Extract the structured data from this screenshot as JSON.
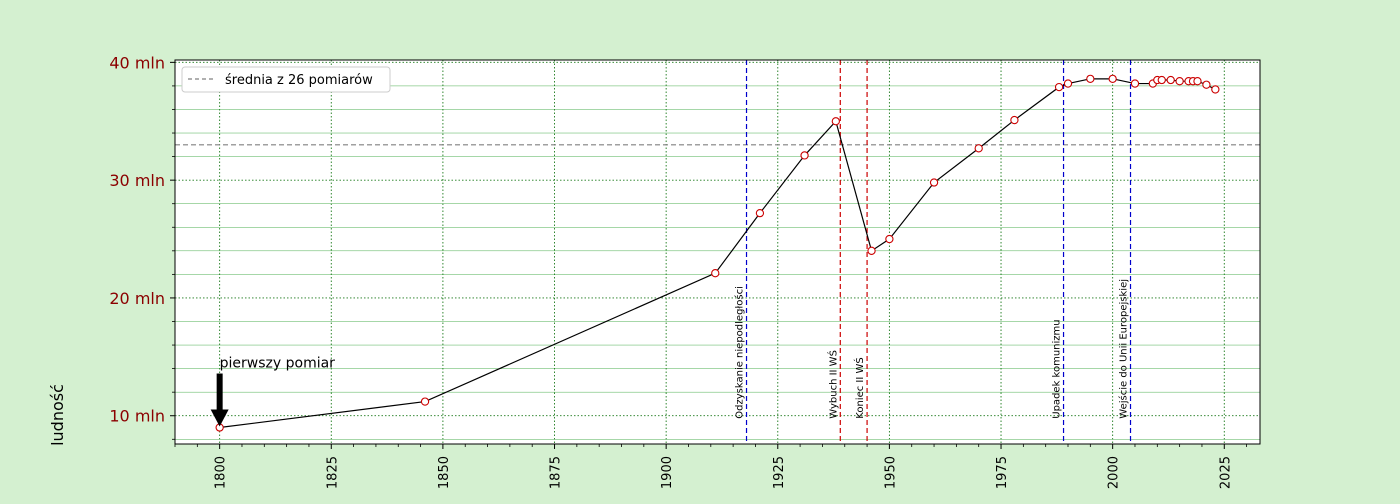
{
  "chart_data": {
    "type": "line",
    "xlabel": "",
    "ylabel": "ludność",
    "xlim": [
      1790,
      2033
    ],
    "ylim": [
      7.6,
      40.2
    ],
    "y_unit_suffix": " mln",
    "x_ticks": [
      1800,
      1825,
      1850,
      1875,
      1900,
      1925,
      1950,
      1975,
      2000,
      2025
    ],
    "y_ticks": [
      10,
      20,
      30,
      40
    ],
    "grid": true,
    "legend_position": "top-left",
    "series": [
      {
        "name": "",
        "color": "#000000",
        "marker_edge": "#cc0000",
        "marker_face": "#ffffff",
        "x": [
          1800,
          1846,
          1911,
          1921,
          1931,
          1938,
          1946,
          1950,
          1960,
          1970,
          1978,
          1988,
          1990,
          1995,
          2000,
          2005,
          2009,
          2010,
          2011,
          2013,
          2015,
          2017,
          2018,
          2019,
          2021,
          2023
        ],
        "y": [
          9.0,
          11.2,
          22.1,
          27.2,
          32.1,
          35.0,
          24.0,
          25.0,
          29.8,
          32.7,
          35.1,
          37.9,
          38.2,
          38.6,
          38.6,
          38.2,
          38.2,
          38.5,
          38.5,
          38.5,
          38.4,
          38.4,
          38.4,
          38.4,
          38.1,
          37.7
        ]
      }
    ],
    "mean": {
      "value": 33.0,
      "label": "średnia z 26 pomiarów",
      "color": "#808080"
    },
    "events": [
      {
        "x": 1918,
        "label": "Odzyskanie niepodległości",
        "color": "#0000cc"
      },
      {
        "x": 1939,
        "label": "Wybuch II WŚ",
        "color": "#cc0000"
      },
      {
        "x": 1945,
        "label": "Koniec II WŚ",
        "color": "#cc0000"
      },
      {
        "x": 1989,
        "label": "Upadek komunizmu",
        "color": "#0000cc"
      },
      {
        "x": 2004,
        "label": "Wejście do Unii Europejskiej",
        "color": "#0000cc"
      }
    ],
    "annotation": {
      "text": "pierwszy pomiar",
      "x": 1800,
      "y": 9.0
    }
  }
}
